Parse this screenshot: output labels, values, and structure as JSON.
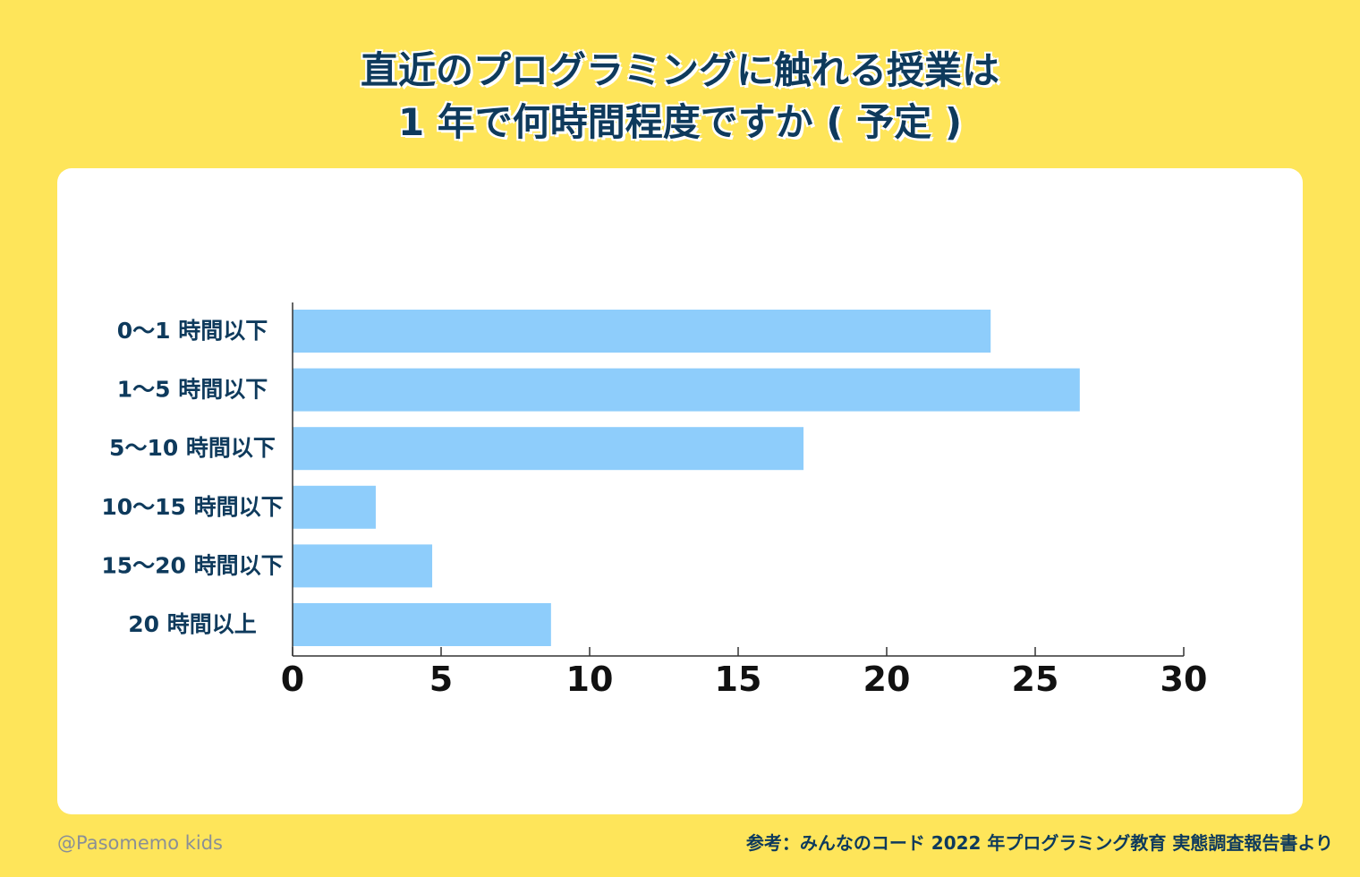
{
  "title_line1": "直近のプログラミングに触れる授業は",
  "title_line2": "1 年で何時間程度ですか ( 予定 )",
  "watermark": "@Pasomemo kids",
  "source": "参考：みんなのコード 2022 年プログラミング教育 実態調査報告書より",
  "colors": {
    "background": "#FEE55A",
    "bar": "#8ECDFB",
    "text": "#0E3A5C"
  },
  "chart_data": {
    "type": "bar",
    "orientation": "horizontal",
    "categories": [
      "0〜1 時間以下",
      "1〜5 時間以下",
      "5〜10 時間以下",
      "10〜15 時間以下",
      "15〜20 時間以下",
      "20 時間以上"
    ],
    "values": [
      23.5,
      26.5,
      17.2,
      2.8,
      4.7,
      8.7
    ],
    "xlim": [
      0,
      30
    ],
    "xticks": [
      "0",
      "5",
      "10",
      "15",
      "20",
      "25",
      "30"
    ],
    "grid": false,
    "legend": "none"
  }
}
